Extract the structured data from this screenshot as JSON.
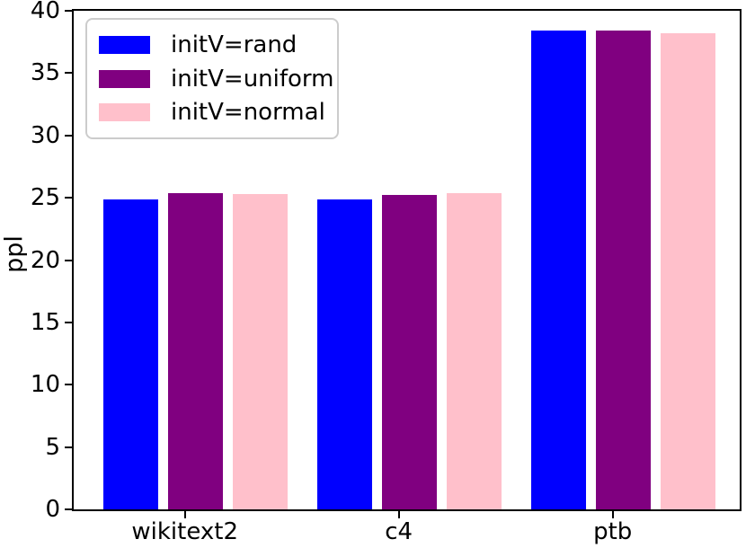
{
  "chart_data": {
    "type": "bar",
    "title": "",
    "xlabel": "",
    "ylabel": "ppl",
    "categories": [
      "wikitext2",
      "c4",
      "ptb"
    ],
    "series": [
      {
        "name": "initV=rand",
        "color": "#0000ff",
        "values": [
          24.9,
          24.9,
          38.4
        ]
      },
      {
        "name": "initV=uniform",
        "color": "#800080",
        "values": [
          25.4,
          25.2,
          38.45
        ]
      },
      {
        "name": "initV=normal",
        "color": "#ffc0cb",
        "values": [
          25.3,
          25.35,
          38.2
        ]
      }
    ],
    "ylim": [
      0,
      40
    ],
    "yticks": [
      0,
      5,
      10,
      15,
      20,
      25,
      30,
      35,
      40
    ],
    "grid": false,
    "legend_position": "upper left",
    "spine_color": "#000000",
    "legend_border_color": "#cccccc",
    "background_color": "#ffffff"
  }
}
